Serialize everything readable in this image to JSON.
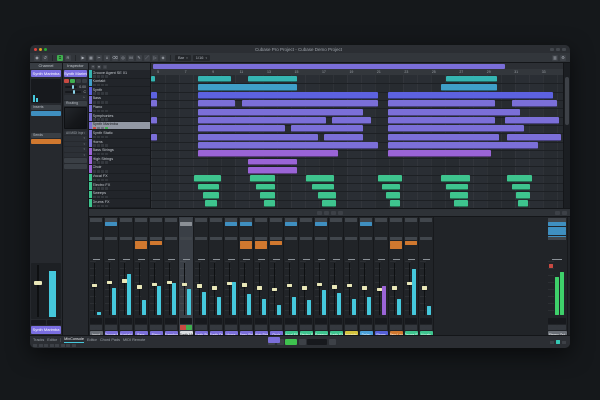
{
  "window": {
    "title": "Cubase Pro Project - Cubase Demo Project"
  },
  "toolbar": {
    "tools": [
      {
        "name": "select-tool",
        "glyph": "▶"
      },
      {
        "name": "range-tool",
        "glyph": "▦"
      },
      {
        "name": "split-tool",
        "glyph": "✂"
      },
      {
        "name": "glue-tool",
        "glyph": "∪"
      },
      {
        "name": "erase-tool",
        "glyph": "⌫"
      },
      {
        "name": "zoom-tool",
        "glyph": "◎"
      },
      {
        "name": "mute-tool",
        "glyph": "M"
      },
      {
        "name": "draw-tool",
        "glyph": "✎"
      },
      {
        "name": "line-tool",
        "glyph": "／"
      },
      {
        "name": "play-tool",
        "glyph": "▷"
      },
      {
        "name": "color-tool",
        "glyph": "◈"
      }
    ],
    "snap": "Bar",
    "quantize": "1/16"
  },
  "channel_panel": {
    "header": "Channel",
    "track_name": "Synth Marimba",
    "inserts_label": "Inserts",
    "sends_label": "Sends"
  },
  "inspector": {
    "header": "Inspector",
    "track_name": "Synth Marimba",
    "volume": "0.00",
    "pan": "C",
    "routing_label": "Routing",
    "input_label": "All MIDI Inputs"
  },
  "colors": {
    "teal": "#35b5b2",
    "cyan": "#3f9fc8",
    "blue": "#5d62e0",
    "purple": "#7b6fd8",
    "violet": "#9a64d6",
    "green": "#3ec48e",
    "insert_blue": "#3f8fc0",
    "insert_gray": "#8b9096",
    "send_orange": "#d0782f",
    "meter_cyan": "#45c8dc",
    "meter_green": "#3ed06a",
    "label_gray": "#6a6f76",
    "yellow": "#d4c23c",
    "lblue": "#4a9fd8",
    "indigo": "#5560d8",
    "orange": "#d0782f"
  },
  "tracklist": {
    "tracks": [
      {
        "name": "Groove Agent SE 01",
        "color": "teal"
      },
      {
        "name": "Kontakt",
        "color": "cyan"
      },
      {
        "name": "Synth",
        "color": "blue"
      },
      {
        "name": "Bass",
        "color": "purple"
      },
      {
        "name": "Piano",
        "color": "purple"
      },
      {
        "name": "Symphonies",
        "color": "purple"
      },
      {
        "name": "Synth Marimba",
        "color": "purple",
        "selected": true
      },
      {
        "name": "Synth Static",
        "color": "purple"
      },
      {
        "name": "Horns",
        "color": "purple"
      },
      {
        "name": "Bass Strings",
        "color": "violet"
      },
      {
        "name": "High Strings",
        "color": "violet"
      },
      {
        "name": "Choir",
        "color": "violet"
      },
      {
        "name": "Vocal FX",
        "color": "green"
      },
      {
        "name": "Electro FX",
        "color": "green"
      },
      {
        "name": "Sweeps",
        "color": "green"
      },
      {
        "name": "Drums FX",
        "color": "green"
      }
    ]
  },
  "arrangement": {
    "ruler_numbers": [
      "5",
      "7",
      "9",
      "11",
      "13",
      "15",
      "17",
      "19",
      "21",
      "23",
      "25",
      "27",
      "29",
      "31",
      "33"
    ],
    "cycle_span": [
      0.5,
      86
    ],
    "rows": [
      {
        "color": "teal",
        "clips": [
          [
            0,
            1
          ],
          [
            11.5,
            8
          ],
          [
            23.5,
            12
          ],
          [
            71.5,
            12.5
          ]
        ]
      },
      {
        "color": "cyan",
        "clips": [
          [
            11.5,
            24
          ],
          [
            70.5,
            13.5
          ]
        ]
      },
      {
        "color": "blue",
        "clips": [
          [
            0,
            1.5
          ],
          [
            11.5,
            43.5
          ],
          [
            57.5,
            40
          ]
        ]
      },
      {
        "color": "purple",
        "clips": [
          [
            0,
            1.5
          ],
          [
            11.5,
            9
          ],
          [
            22,
            33
          ],
          [
            57.5,
            26
          ],
          [
            87.5,
            11
          ]
        ]
      },
      {
        "color": "purple",
        "clips": [
          [
            11.5,
            40
          ],
          [
            57.5,
            32
          ]
        ]
      },
      {
        "color": "purple",
        "clips": [
          [
            0,
            1.5
          ],
          [
            11.5,
            31
          ],
          [
            44,
            9.5
          ],
          [
            57.5,
            26
          ],
          [
            86,
            13
          ]
        ]
      },
      {
        "color": "purple",
        "clips": [
          [
            11.5,
            21
          ],
          [
            34,
            17.5
          ],
          [
            57.5,
            33
          ]
        ]
      },
      {
        "color": "purple",
        "clips": [
          [
            0,
            1.5
          ],
          [
            11.5,
            29
          ],
          [
            42,
            9.5
          ],
          [
            57.5,
            27
          ],
          [
            86.5,
            13
          ]
        ]
      },
      {
        "color": "purple",
        "clips": [
          [
            11.5,
            43.5
          ],
          [
            57.5,
            36.5
          ]
        ]
      },
      {
        "color": "violet",
        "clips": [
          [
            11.5,
            34
          ],
          [
            57.5,
            25
          ]
        ]
      },
      {
        "color": "violet",
        "clips": [
          [
            23.5,
            12
          ]
        ]
      },
      {
        "color": "violet",
        "clips": [
          [
            23.5,
            12
          ]
        ]
      },
      {
        "color": "green",
        "clips": [
          [
            10.5,
            6.5
          ],
          [
            24,
            6
          ],
          [
            37.5,
            7
          ],
          [
            55,
            6
          ],
          [
            70.5,
            7
          ],
          [
            86.5,
            6
          ]
        ]
      },
      {
        "color": "green",
        "clips": [
          [
            11.5,
            5
          ],
          [
            25.5,
            4.5
          ],
          [
            39,
            5.5
          ],
          [
            56,
            4.5
          ],
          [
            71.5,
            5.5
          ],
          [
            87.5,
            4.5
          ]
        ]
      },
      {
        "color": "green",
        "clips": [
          [
            12.5,
            4
          ],
          [
            26.5,
            3.5
          ],
          [
            40.5,
            4.5
          ],
          [
            57,
            3.5
          ],
          [
            72.5,
            4.5
          ],
          [
            88.5,
            3.5
          ]
        ]
      },
      {
        "color": "green",
        "clips": [
          [
            13,
            3
          ],
          [
            27.5,
            2.5
          ],
          [
            41.5,
            3.5
          ],
          [
            58,
            2.5
          ],
          [
            73.5,
            3.5
          ],
          [
            89,
            2.5
          ]
        ]
      }
    ]
  },
  "mixer": {
    "channels": [
      {
        "name": "Input",
        "color": "label_gray",
        "fader": 0.55,
        "meter": 0.06,
        "inserts": [],
        "sends": []
      },
      {
        "name": "Groove Agent SE",
        "color": "purple",
        "fader": 0.62,
        "meter": 0.52,
        "inserts": [
          "insert_blue"
        ],
        "sends": []
      },
      {
        "name": "Kontakt",
        "color": "purple",
        "fader": 0.66,
        "meter": 0.78,
        "inserts": [],
        "sends": []
      },
      {
        "name": "Bass",
        "color": "purple",
        "fader": 0.52,
        "meter": 0.28,
        "inserts": [],
        "sends": [
          "send_orange",
          "send_orange"
        ]
      },
      {
        "name": "Piano",
        "color": "purple",
        "fader": 0.58,
        "meter": 0.55,
        "inserts": [],
        "sends": [
          "send_orange"
        ]
      },
      {
        "name": "Symphonies",
        "color": "purple",
        "fader": 0.62,
        "meter": 0.62,
        "inserts": [],
        "sends": []
      },
      {
        "name": "Synth Marimba",
        "color": "purple",
        "fader": 0.58,
        "meter": 0.5,
        "inserts": [
          "insert_gray"
        ],
        "sends": [],
        "selected": true
      },
      {
        "name": "Synth Static",
        "color": "purple",
        "fader": 0.54,
        "meter": 0.45,
        "inserts": [],
        "sends": []
      },
      {
        "name": "Synth Distorted",
        "color": "purple",
        "fader": 0.5,
        "meter": 0.34,
        "inserts": [],
        "sends": []
      },
      {
        "name": "Horns",
        "color": "purple",
        "fader": 0.6,
        "meter": 0.64,
        "inserts": [
          "insert_blue"
        ],
        "sends": []
      },
      {
        "name": "Bass Strings",
        "color": "purple",
        "fader": 0.56,
        "meter": 0.4,
        "inserts": [
          "insert_blue"
        ],
        "sends": [
          "send_orange",
          "send_orange"
        ]
      },
      {
        "name": "High Strings",
        "color": "purple",
        "fader": 0.5,
        "meter": 0.3,
        "inserts": [],
        "sends": [
          "send_orange",
          "send_orange"
        ]
      },
      {
        "name": "Choir",
        "color": "purple",
        "fader": 0.46,
        "meter": 0.2,
        "inserts": [],
        "sends": [
          "send_orange"
        ]
      },
      {
        "name": "Vocal FX",
        "color": "green",
        "fader": 0.55,
        "meter": 0.35,
        "inserts": [
          "insert_blue"
        ],
        "sends": []
      },
      {
        "name": "Electro FX",
        "color": "green",
        "fader": 0.5,
        "meter": 0.28,
        "inserts": [],
        "sends": []
      },
      {
        "name": "Sweeps",
        "color": "green",
        "fader": 0.58,
        "meter": 0.48,
        "inserts": [
          "insert_blue"
        ],
        "sends": []
      },
      {
        "name": "Synth FX",
        "color": "green",
        "fader": 0.52,
        "meter": 0.42,
        "inserts": [],
        "sends": []
      },
      {
        "name": "Impacts",
        "color": "yellow",
        "fader": 0.55,
        "meter": 0.3,
        "inserts": [],
        "sends": []
      },
      {
        "name": "Delay",
        "color": "lblue",
        "fader": 0.5,
        "meter": 0.34,
        "inserts": [
          "insert_blue"
        ],
        "sends": []
      },
      {
        "name": "Risers",
        "color": "indigo",
        "fader": 0.46,
        "meter": 0.55,
        "meter_color": "violet",
        "inserts": [],
        "sends": []
      },
      {
        "name": "Perc Loop",
        "color": "orange",
        "fader": 0.5,
        "meter": 0.3,
        "inserts": [],
        "sends": [
          "send_orange",
          "send_orange"
        ]
      },
      {
        "name": "Drums FX",
        "color": "green",
        "fader": 0.6,
        "meter": 0.88,
        "inserts": [],
        "sends": [
          "send_orange"
        ]
      },
      {
        "name": "Vocals",
        "color": "green",
        "fader": 0.5,
        "meter": 0.18,
        "inserts": [],
        "sends": []
      }
    ],
    "master": {
      "name": "Stereo Out",
      "meters": [
        0.82,
        0.74
      ]
    }
  },
  "statusbar": {
    "left_tabs": [
      "Tracks",
      "Editor"
    ],
    "zone_tabs": [
      "MixConsole",
      "Editor",
      "Chord Pads",
      "MIDI Remote"
    ],
    "active_zone_tab": "MixConsole"
  }
}
